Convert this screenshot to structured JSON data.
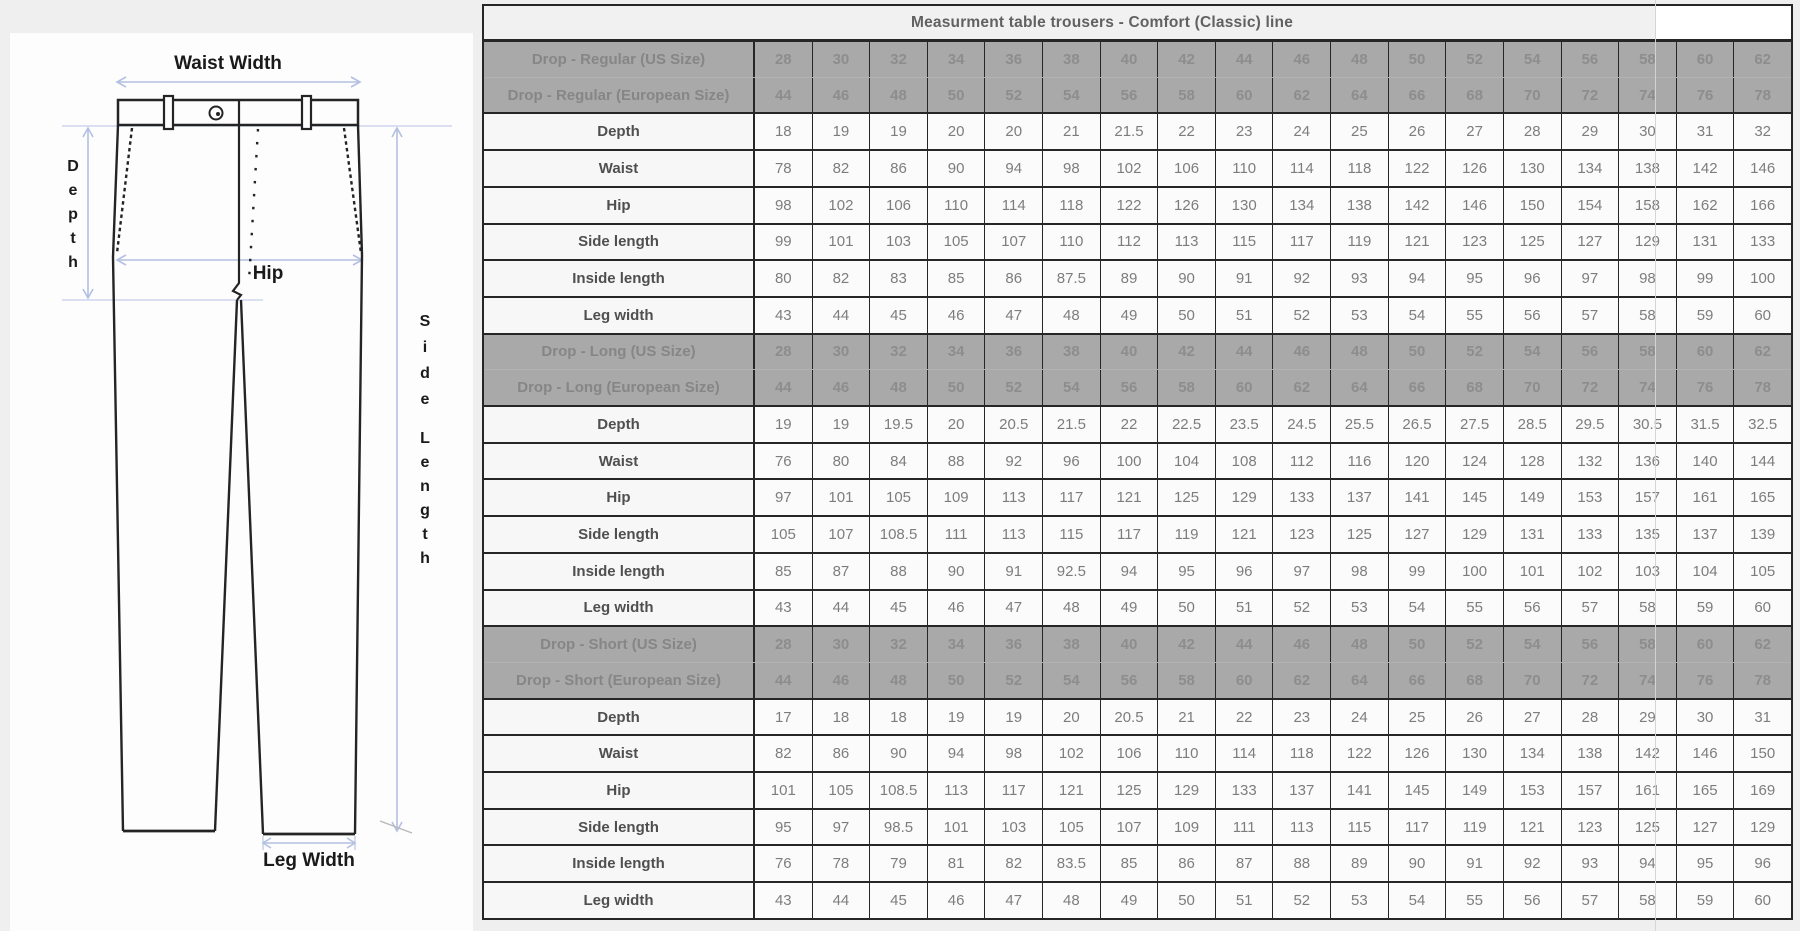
{
  "page": {
    "background": "#efeff0"
  },
  "diagram": {
    "labels": {
      "waist_width": "Waist Width",
      "depth": "Depth",
      "hip": "Hip",
      "side_length": "Side Length",
      "leg_width": "Leg Width"
    },
    "colors": {
      "outline": "#242424",
      "arrow": "#b3c0e2",
      "guide": "#c6d0ea",
      "text": "#1a1a1a"
    }
  },
  "table": {
    "title": "Measurment table trousers - Comfort (Classic) line",
    "colors": {
      "size_row_bg": "#a9a9a9",
      "size_row_text": "#8a8a8a",
      "label_text": "#4f4f4f",
      "value_text": "#7d7d7d",
      "border": "#262626",
      "title_text": "#616161",
      "title_bg": "#f1f1f2"
    },
    "rows": [
      {
        "type": "size",
        "pair": "first",
        "label": "Drop - Regular (US Size)",
        "values": [
          28,
          30,
          32,
          34,
          36,
          38,
          40,
          42,
          44,
          46,
          48,
          50,
          52,
          54,
          56,
          58,
          60,
          62
        ]
      },
      {
        "type": "size",
        "pair": "second",
        "label": "Drop - Regular (European Size)",
        "values": [
          44,
          46,
          48,
          50,
          52,
          54,
          56,
          58,
          60,
          62,
          64,
          66,
          68,
          70,
          72,
          74,
          76,
          78
        ]
      },
      {
        "type": "measure",
        "label": "Depth",
        "values": [
          18,
          19,
          19,
          20,
          20,
          21,
          21.5,
          22,
          23,
          24,
          25,
          26,
          27,
          28,
          29,
          30,
          31,
          32
        ]
      },
      {
        "type": "measure",
        "label": "Waist",
        "values": [
          78,
          82,
          86,
          90,
          94,
          98,
          102,
          106,
          110,
          114,
          118,
          122,
          126,
          130,
          134,
          138,
          142,
          146
        ]
      },
      {
        "type": "measure",
        "label": "Hip",
        "values": [
          98,
          102,
          106,
          110,
          114,
          118,
          122,
          126,
          130,
          134,
          138,
          142,
          146,
          150,
          154,
          158,
          162,
          166
        ]
      },
      {
        "type": "measure",
        "label": "Side length",
        "values": [
          99,
          101,
          103,
          105,
          107,
          110,
          112,
          113,
          115,
          117,
          119,
          121,
          123,
          125,
          127,
          129,
          131,
          133
        ]
      },
      {
        "type": "measure",
        "label": "Inside length",
        "values": [
          80,
          82,
          83,
          85,
          86,
          87.5,
          89,
          90,
          91,
          92,
          93,
          94,
          95,
          96,
          97,
          98,
          99,
          100
        ]
      },
      {
        "type": "measure",
        "label": "Leg width",
        "values": [
          43,
          44,
          45,
          46,
          47,
          48,
          49,
          50,
          51,
          52,
          53,
          54,
          55,
          56,
          57,
          58,
          59,
          60
        ]
      },
      {
        "type": "size",
        "pair": "first",
        "label": "Drop - Long (US Size)",
        "values": [
          28,
          30,
          32,
          34,
          36,
          38,
          40,
          42,
          44,
          46,
          48,
          50,
          52,
          54,
          56,
          58,
          60,
          62
        ]
      },
      {
        "type": "size",
        "pair": "second",
        "label": "Drop - Long (European Size)",
        "values": [
          44,
          46,
          48,
          50,
          52,
          54,
          56,
          58,
          60,
          62,
          64,
          66,
          68,
          70,
          72,
          74,
          76,
          78
        ]
      },
      {
        "type": "measure",
        "label": "Depth",
        "values": [
          19,
          19,
          19.5,
          20,
          20.5,
          21.5,
          22,
          22.5,
          23.5,
          24.5,
          25.5,
          26.5,
          27.5,
          28.5,
          29.5,
          30.5,
          31.5,
          32.5
        ]
      },
      {
        "type": "measure",
        "label": "Waist",
        "values": [
          76,
          80,
          84,
          88,
          92,
          96,
          100,
          104,
          108,
          112,
          116,
          120,
          124,
          128,
          132,
          136,
          140,
          144
        ]
      },
      {
        "type": "measure",
        "label": "Hip",
        "values": [
          97,
          101,
          105,
          109,
          113,
          117,
          121,
          125,
          129,
          133,
          137,
          141,
          145,
          149,
          153,
          157,
          161,
          165
        ]
      },
      {
        "type": "measure",
        "label": "Side length",
        "values": [
          105,
          107,
          108.5,
          111,
          113,
          115,
          117,
          119,
          121,
          123,
          125,
          127,
          129,
          131,
          133,
          135,
          137,
          139
        ]
      },
      {
        "type": "measure",
        "label": "Inside length",
        "values": [
          85,
          87,
          88,
          90,
          91,
          92.5,
          94,
          95,
          96,
          97,
          98,
          99,
          100,
          101,
          102,
          103,
          104,
          105
        ]
      },
      {
        "type": "measure",
        "label": "Leg width",
        "values": [
          43,
          44,
          45,
          46,
          47,
          48,
          49,
          50,
          51,
          52,
          53,
          54,
          55,
          56,
          57,
          58,
          59,
          60
        ]
      },
      {
        "type": "size",
        "pair": "first",
        "label": "Drop - Short (US Size)",
        "values": [
          28,
          30,
          32,
          34,
          36,
          38,
          40,
          42,
          44,
          46,
          48,
          50,
          52,
          54,
          56,
          58,
          60,
          62
        ]
      },
      {
        "type": "size",
        "pair": "second",
        "label": "Drop - Short (European Size)",
        "values": [
          44,
          46,
          48,
          50,
          52,
          54,
          56,
          58,
          60,
          62,
          64,
          66,
          68,
          70,
          72,
          74,
          76,
          78
        ]
      },
      {
        "type": "measure",
        "label": "Depth",
        "values": [
          17,
          18,
          18,
          19,
          19,
          20,
          20.5,
          21,
          22,
          23,
          24,
          25,
          26,
          27,
          28,
          29,
          30,
          31
        ]
      },
      {
        "type": "measure",
        "label": "Waist",
        "values": [
          82,
          86,
          90,
          94,
          98,
          102,
          106,
          110,
          114,
          118,
          122,
          126,
          130,
          134,
          138,
          142,
          146,
          150
        ]
      },
      {
        "type": "measure",
        "label": "Hip",
        "values": [
          101,
          105,
          108.5,
          113,
          117,
          121,
          125,
          129,
          133,
          137,
          141,
          145,
          149,
          153,
          157,
          161,
          165,
          169
        ]
      },
      {
        "type": "measure",
        "label": "Side length",
        "values": [
          95,
          97,
          98.5,
          101,
          103,
          105,
          107,
          109,
          111,
          113,
          115,
          117,
          119,
          121,
          123,
          125,
          127,
          129
        ]
      },
      {
        "type": "measure",
        "label": "Inside length",
        "values": [
          76,
          78,
          79,
          81,
          82,
          83.5,
          85,
          86,
          87,
          88,
          89,
          90,
          91,
          92,
          93,
          94,
          95,
          96
        ]
      },
      {
        "type": "measure",
        "label": "Leg width",
        "values": [
          43,
          44,
          45,
          46,
          47,
          48,
          49,
          50,
          51,
          52,
          53,
          54,
          55,
          56,
          57,
          58,
          59,
          60
        ]
      }
    ]
  }
}
